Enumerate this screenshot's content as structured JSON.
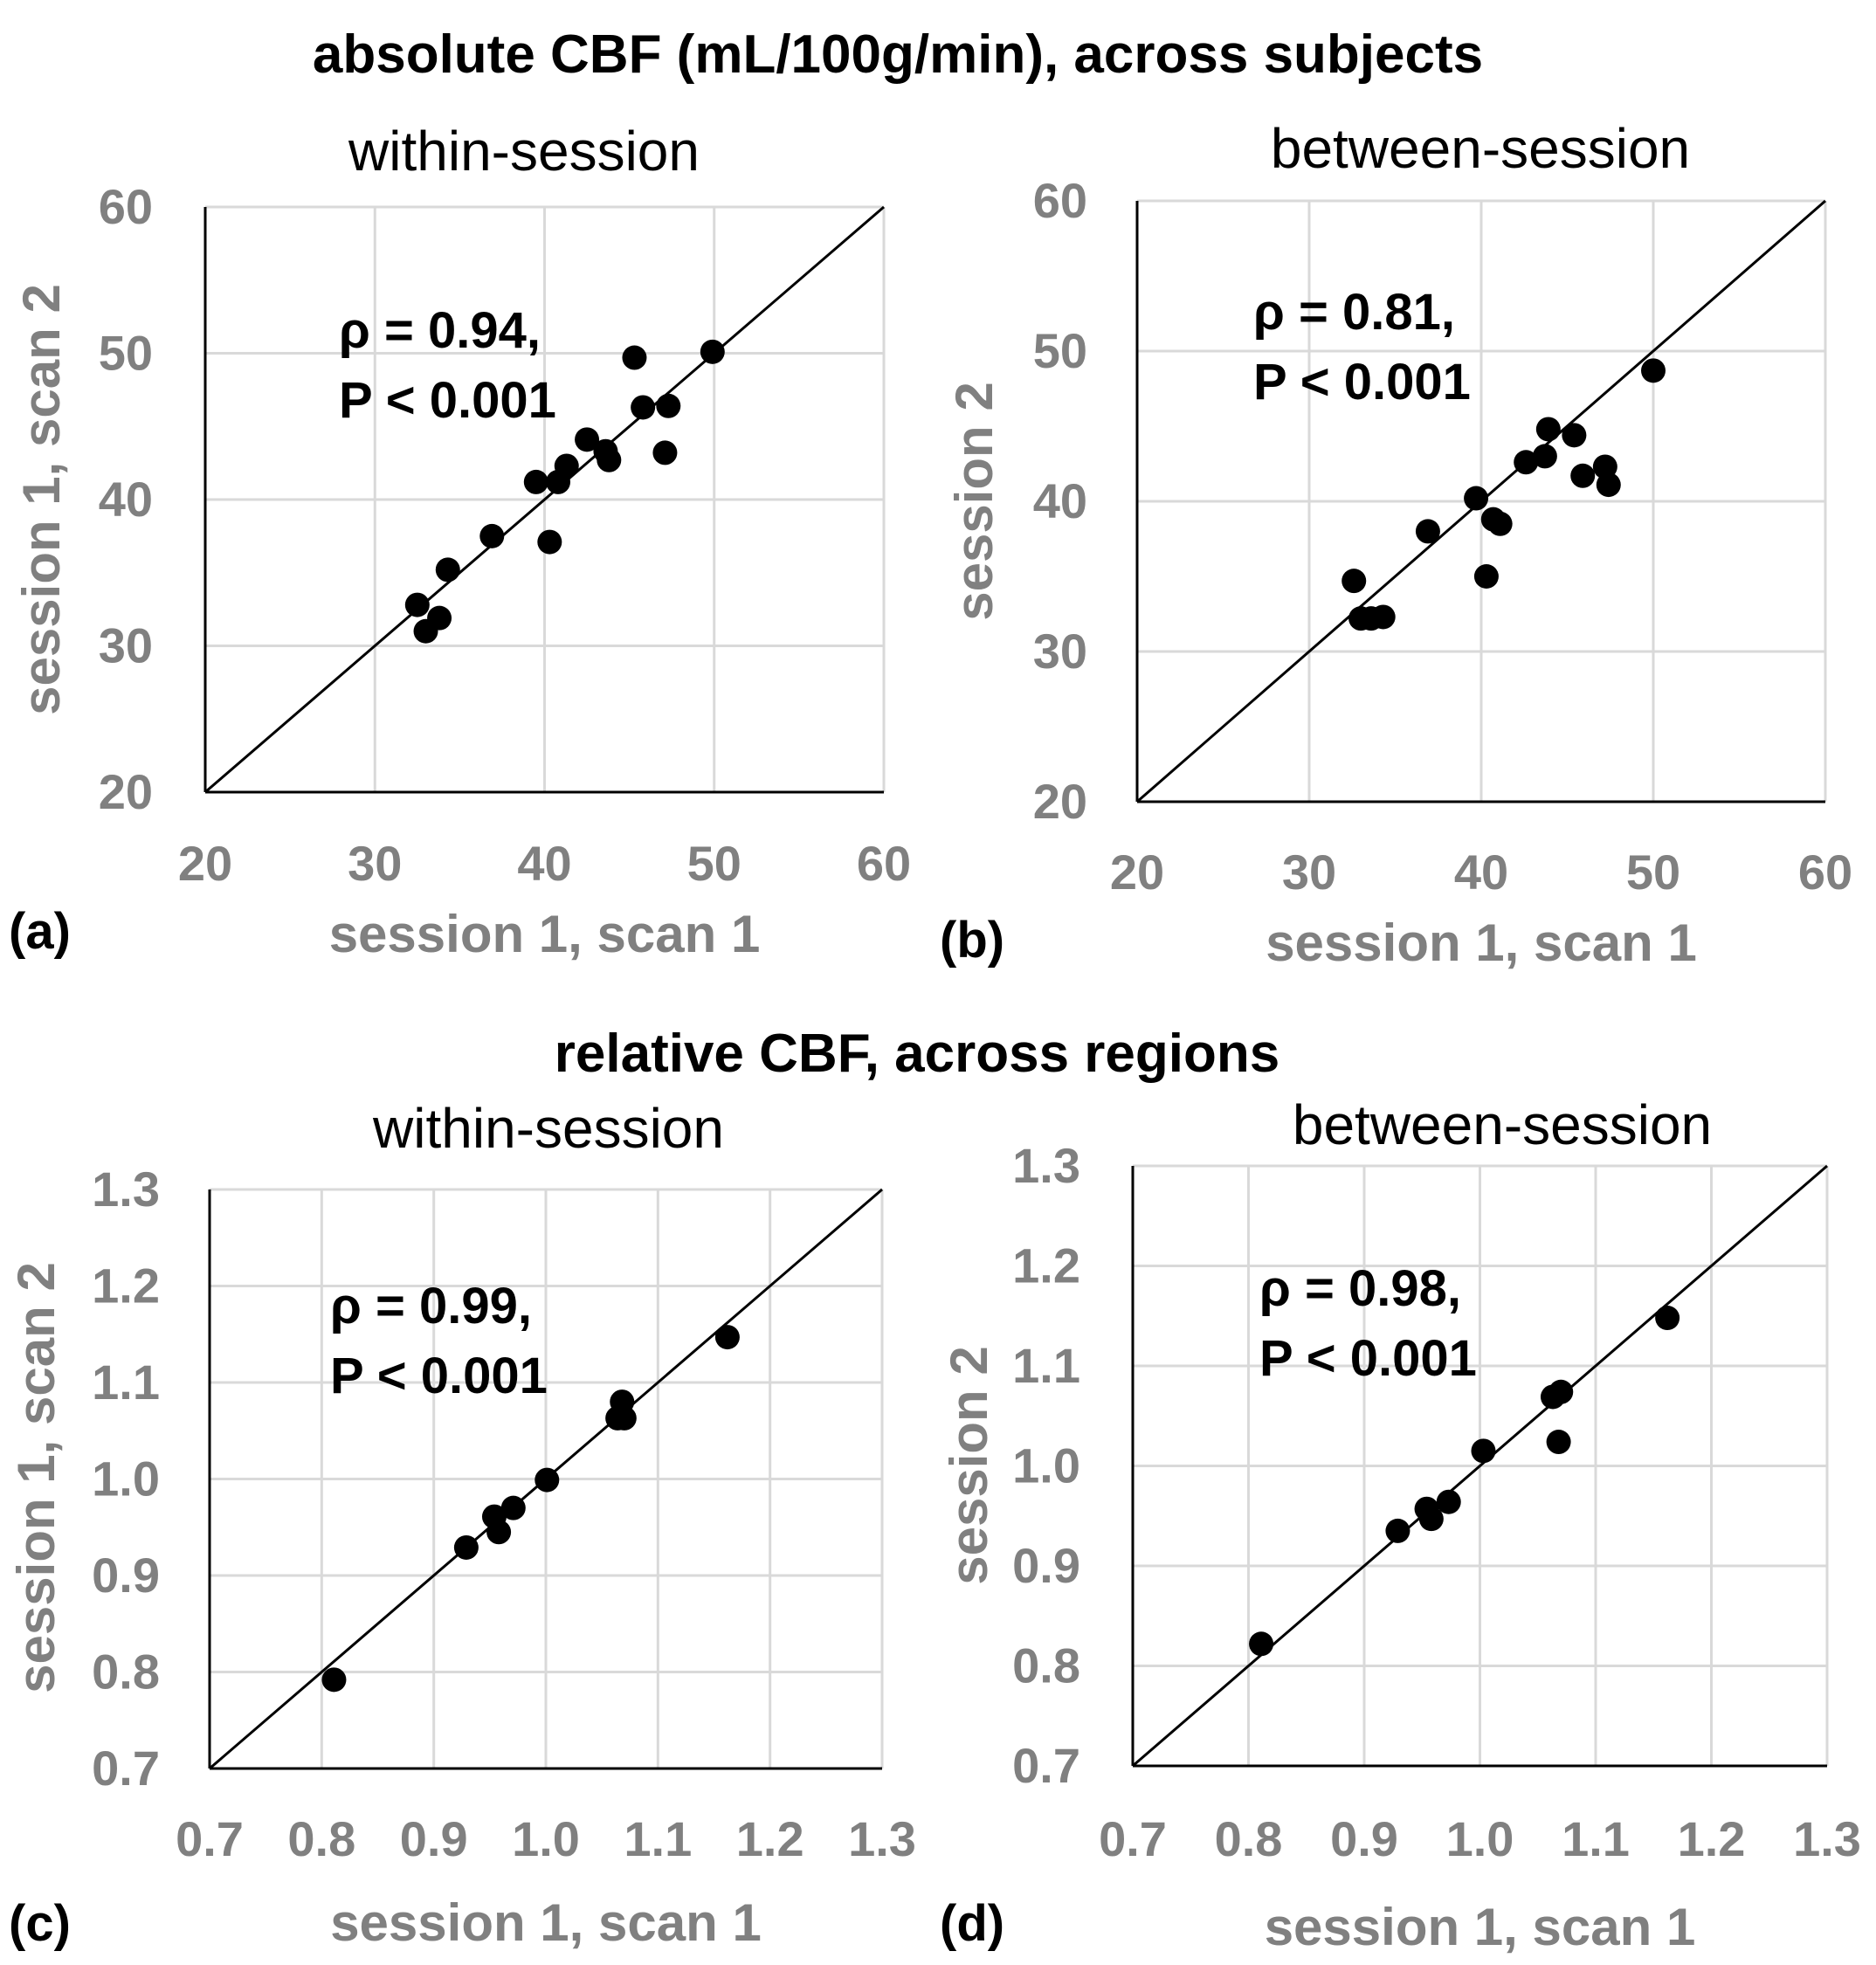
{
  "colors": {
    "grid": "#d9d9d9",
    "axis": "#000000",
    "tick_text": "#808080",
    "point": "#000000",
    "identity_line": "#000000"
  },
  "section_titles": {
    "absolute": "absolute CBF (mL/100g/min), across subjects",
    "relative": "relative CBF, across regions"
  },
  "chart_data": [
    {
      "panel": "(a)",
      "type": "scatter",
      "title": "within-session",
      "xlabel": "session 1, scan 1",
      "ylabel": "session 1,  scan 2",
      "xlim": [
        20,
        60
      ],
      "ylim": [
        20,
        60
      ],
      "xticks": [
        "20",
        "30",
        "40",
        "50",
        "60"
      ],
      "yticks": [
        "20",
        "30",
        "40",
        "50",
        "60"
      ],
      "grid": true,
      "identity_line": true,
      "annotation": [
        "ρ = 0.94,",
        "P < 0.001"
      ],
      "points": [
        [
          32.5,
          32.8
        ],
        [
          33.0,
          31.0
        ],
        [
          33.8,
          31.9
        ],
        [
          34.3,
          35.2
        ],
        [
          36.9,
          37.5
        ],
        [
          39.5,
          41.2
        ],
        [
          40.3,
          37.1
        ],
        [
          40.8,
          41.2
        ],
        [
          41.3,
          42.3
        ],
        [
          42.5,
          44.1
        ],
        [
          43.6,
          43.3
        ],
        [
          43.8,
          42.7
        ],
        [
          45.3,
          49.7
        ],
        [
          45.8,
          46.3
        ],
        [
          47.1,
          43.2
        ],
        [
          47.3,
          46.4
        ],
        [
          49.9,
          50.1
        ]
      ]
    },
    {
      "panel": "(b)",
      "type": "scatter",
      "title": "between-session",
      "xlabel": "session 1, scan 1",
      "ylabel": "session 2",
      "xlim": [
        20,
        60
      ],
      "ylim": [
        20,
        60
      ],
      "xticks": [
        "20",
        "30",
        "40",
        "50",
        "60"
      ],
      "yticks": [
        "20",
        "30",
        "40",
        "50",
        "60"
      ],
      "grid": true,
      "identity_line": true,
      "annotation": [
        "ρ = 0.81,",
        "P < 0.001"
      ],
      "points": [
        [
          32.6,
          34.7
        ],
        [
          33.0,
          32.2
        ],
        [
          33.6,
          32.2
        ],
        [
          34.3,
          32.3
        ],
        [
          36.9,
          38.0
        ],
        [
          39.7,
          40.2
        ],
        [
          40.3,
          35.0
        ],
        [
          40.7,
          38.8
        ],
        [
          41.1,
          38.5
        ],
        [
          42.6,
          42.6
        ],
        [
          43.7,
          43.0
        ],
        [
          43.9,
          44.8
        ],
        [
          45.4,
          44.4
        ],
        [
          45.9,
          41.7
        ],
        [
          47.2,
          42.3
        ],
        [
          47.4,
          41.1
        ],
        [
          50.0,
          48.7
        ]
      ]
    },
    {
      "panel": "(c)",
      "type": "scatter",
      "title": "within-session",
      "xlabel": "session 1, scan 1",
      "ylabel": "session 1, scan 2",
      "xlim": [
        0.7,
        1.3
      ],
      "ylim": [
        0.7,
        1.3
      ],
      "xticks": [
        "0.7",
        "0.8",
        "0.9",
        "1.0",
        "1.1",
        "1.2",
        "1.3"
      ],
      "yticks": [
        "0.7",
        "0.8",
        "0.9",
        "1.0",
        "1.1",
        "1.2",
        "1.3"
      ],
      "grid": true,
      "identity_line": true,
      "annotation": [
        "ρ = 0.99,",
        "P < 0.001"
      ],
      "points": [
        [
          0.811,
          0.792
        ],
        [
          0.929,
          0.929
        ],
        [
          0.954,
          0.961
        ],
        [
          0.958,
          0.945
        ],
        [
          0.971,
          0.97
        ],
        [
          1.001,
          0.999
        ],
        [
          1.064,
          1.063
        ],
        [
          1.068,
          1.08
        ],
        [
          1.07,
          1.063
        ],
        [
          1.162,
          1.147
        ]
      ]
    },
    {
      "panel": "(d)",
      "type": "scatter",
      "title": "between-session",
      "xlabel": "session 1, scan 1",
      "ylabel": "session 2",
      "xlim": [
        0.7,
        1.3
      ],
      "ylim": [
        0.7,
        1.3
      ],
      "xticks": [
        "0.7",
        "0.8",
        "0.9",
        "1.0",
        "1.1",
        "1.2",
        "1.3"
      ],
      "yticks": [
        "0.7",
        "0.8",
        "0.9",
        "1.0",
        "1.1",
        "1.2",
        "1.3"
      ],
      "grid": true,
      "identity_line": true,
      "annotation": [
        "ρ = 0.98,",
        "P < 0.001"
      ],
      "points": [
        [
          0.811,
          0.822
        ],
        [
          0.929,
          0.935
        ],
        [
          0.954,
          0.957
        ],
        [
          0.958,
          0.947
        ],
        [
          0.973,
          0.964
        ],
        [
          1.003,
          1.015
        ],
        [
          1.063,
          1.069
        ],
        [
          1.068,
          1.024
        ],
        [
          1.07,
          1.074
        ],
        [
          1.162,
          1.148
        ]
      ]
    }
  ]
}
